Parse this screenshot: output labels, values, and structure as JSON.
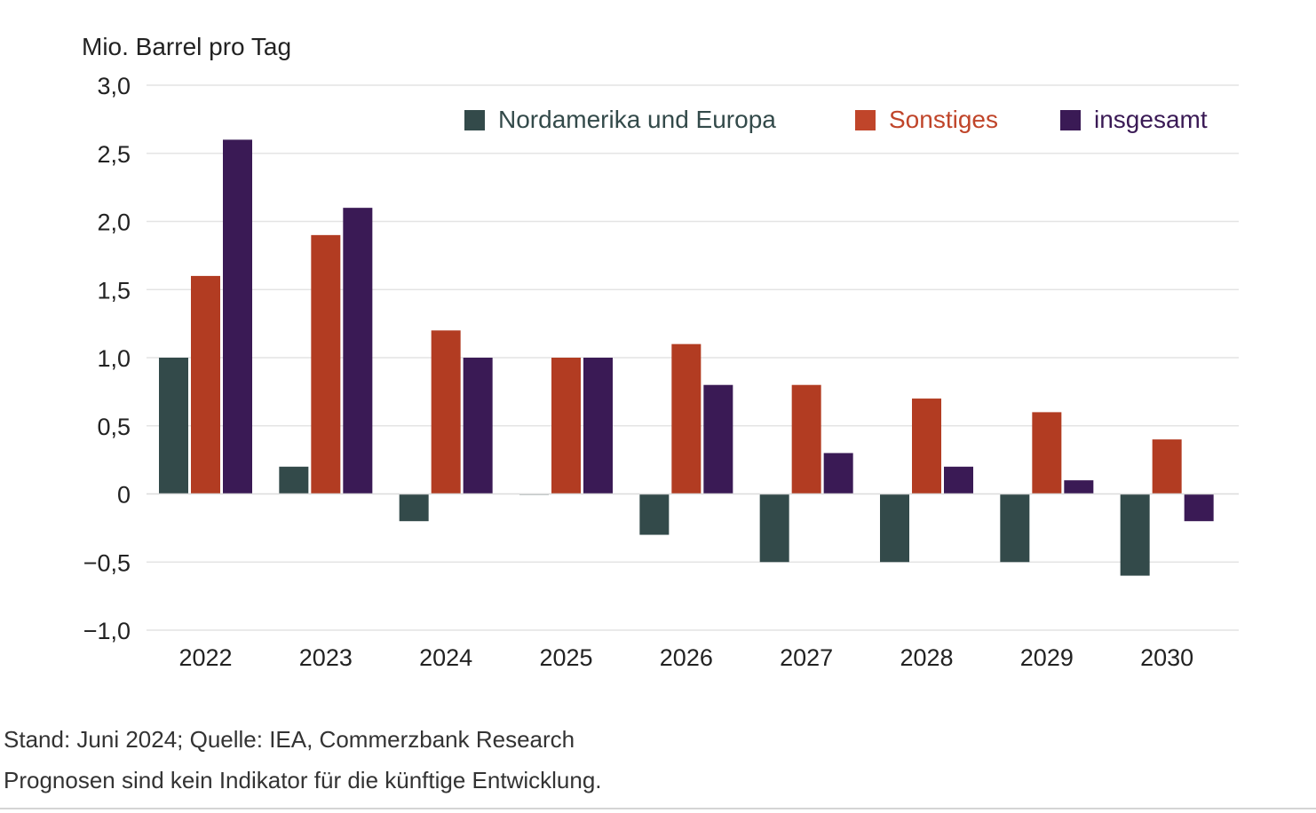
{
  "chart_data": {
    "type": "bar",
    "unit_label": "Mio. Barrel pro Tag",
    "categories": [
      "2022",
      "2023",
      "2024",
      "2025",
      "2026",
      "2027",
      "2028",
      "2029",
      "2030"
    ],
    "series": [
      {
        "name": "Nordamerika und Europa",
        "color": "#334a4a",
        "legend_color": "#334a4a",
        "values": [
          1.0,
          0.2,
          -0.2,
          0.0,
          -0.3,
          -0.5,
          -0.5,
          -0.5,
          -0.6
        ]
      },
      {
        "name": "Sonstiges",
        "color": "#b23c22",
        "legend_color": "#c0452a",
        "values": [
          1.6,
          1.9,
          1.2,
          1.0,
          1.1,
          0.8,
          0.7,
          0.6,
          0.4
        ]
      },
      {
        "name": "insgesamt",
        "color": "#3a1a55",
        "legend_color": "#3a1a55",
        "values": [
          2.6,
          2.1,
          1.0,
          1.0,
          0.8,
          0.3,
          0.2,
          0.1,
          -0.2
        ]
      }
    ],
    "ylim": [
      -1.0,
      3.0
    ],
    "y_ticks": [
      -1.0,
      -0.5,
      0,
      0.5,
      1.0,
      1.5,
      2.0,
      2.5,
      3.0
    ],
    "y_tick_labels": [
      "−1,0",
      "−0,5",
      "0",
      "0,5",
      "1,0",
      "1,5",
      "2,0",
      "2,5",
      "3,0"
    ],
    "legend_position": "top-right",
    "grid": true
  },
  "footnotes": [
    "Stand: Juni 2024; Quelle: IEA, Commerzbank Research",
    "Prognosen sind kein Indikator für die künftige Entwicklung."
  ]
}
